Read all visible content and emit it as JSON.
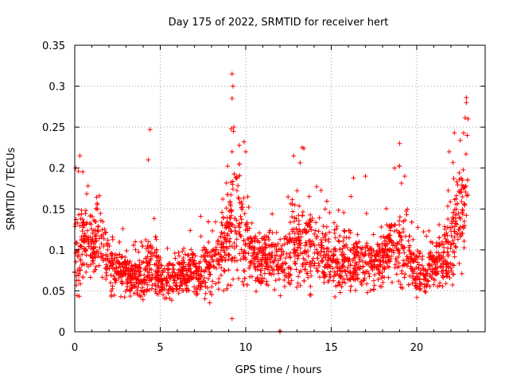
{
  "chart_data": {
    "type": "scatter",
    "title": "Day 175 of 2022, SRMTID for receiver hert",
    "xlabel": "GPS time / hours",
    "ylabel": "SRMTID / TECUs",
    "xlim": [
      0,
      24
    ],
    "ylim": [
      0,
      0.35
    ],
    "xticks": [
      0,
      5,
      10,
      15,
      20
    ],
    "xtick_labels": [
      "0",
      "5",
      "10",
      "15",
      "20"
    ],
    "yticks": [
      0,
      0.05,
      0.1,
      0.15,
      0.2,
      0.25,
      0.3,
      0.35
    ],
    "ytick_labels": [
      "0",
      "0.05",
      "0.1",
      "0.15",
      "0.2",
      "0.25",
      "0.3",
      "0.35"
    ],
    "grid": true,
    "marker": "+",
    "color": "#ff0000",
    "series": [
      {
        "name": "SRMTID",
        "profile_hours": [
          0,
          0.3,
          0.6,
          1,
          1.4,
          2,
          3,
          4,
          4.5,
          5,
          5.5,
          6,
          7,
          8,
          8.5,
          9,
          9.3,
          10,
          10.5,
          11,
          12,
          13,
          13.5,
          14,
          15,
          16,
          17,
          18,
          18.5,
          19,
          19.5,
          20,
          20.5,
          21,
          21.5,
          22,
          22.5,
          23
        ],
        "profile_median": [
          0.09,
          0.1,
          0.11,
          0.1,
          0.12,
          0.08,
          0.07,
          0.065,
          0.09,
          0.065,
          0.06,
          0.065,
          0.075,
          0.08,
          0.1,
          0.12,
          0.14,
          0.12,
          0.09,
          0.09,
          0.085,
          0.1,
          0.11,
          0.1,
          0.085,
          0.09,
          0.08,
          0.085,
          0.11,
          0.1,
          0.09,
          0.075,
          0.07,
          0.08,
          0.09,
          0.1,
          0.14,
          0.15
        ],
        "profile_spread": [
          0.05,
          0.05,
          0.04,
          0.04,
          0.05,
          0.03,
          0.025,
          0.025,
          0.05,
          0.02,
          0.02,
          0.02,
          0.03,
          0.03,
          0.04,
          0.06,
          0.07,
          0.05,
          0.03,
          0.03,
          0.03,
          0.05,
          0.05,
          0.04,
          0.03,
          0.04,
          0.03,
          0.03,
          0.04,
          0.05,
          0.03,
          0.03,
          0.025,
          0.03,
          0.03,
          0.05,
          0.06,
          0.06
        ],
        "points_per_hour": 110,
        "extreme_points": [
          {
            "x": 0.05,
            "y": 0.2
          },
          {
            "x": 0.3,
            "y": 0.215
          },
          {
            "x": 4.4,
            "y": 0.247
          },
          {
            "x": 4.3,
            "y": 0.21
          },
          {
            "x": 9.2,
            "y": 0.315
          },
          {
            "x": 9.25,
            "y": 0.3
          },
          {
            "x": 9.2,
            "y": 0.285
          },
          {
            "x": 9.15,
            "y": 0.248
          },
          {
            "x": 9.3,
            "y": 0.25
          },
          {
            "x": 9.2,
            "y": 0.22
          },
          {
            "x": 9.2,
            "y": 0.016
          },
          {
            "x": 9.9,
            "y": 0.232
          },
          {
            "x": 10.0,
            "y": 0.22
          },
          {
            "x": 13.3,
            "y": 0.225
          },
          {
            "x": 13.4,
            "y": 0.224
          },
          {
            "x": 12.8,
            "y": 0.215
          },
          {
            "x": 16.3,
            "y": 0.188
          },
          {
            "x": 17.0,
            "y": 0.19
          },
          {
            "x": 19.0,
            "y": 0.23
          },
          {
            "x": 18.7,
            "y": 0.2
          },
          {
            "x": 19.3,
            "y": 0.19
          },
          {
            "x": 22.2,
            "y": 0.243
          },
          {
            "x": 21.9,
            "y": 0.22
          },
          {
            "x": 22.9,
            "y": 0.286
          },
          {
            "x": 22.9,
            "y": 0.28
          },
          {
            "x": 23.0,
            "y": 0.26
          },
          {
            "x": 22.95,
            "y": 0.24
          },
          {
            "x": 12.0,
            "y": 0.0
          },
          {
            "x": 12.0,
            "y": 0.001
          }
        ]
      }
    ]
  }
}
